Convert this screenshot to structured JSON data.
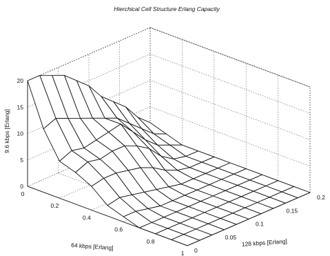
{
  "chart_data": {
    "type": "surface3d",
    "title": "Hierchical Cell Structure Erlang Capacity",
    "xlabel": "64 kbps [Erlang]",
    "ylabel": "128 kbps [Erlang]",
    "zlabel": "9.6 kbps [Erlang]",
    "xlim": [
      0,
      1
    ],
    "ylim": [
      0,
      0.2
    ],
    "zlim": [
      0,
      20
    ],
    "x_ticks": [
      "0",
      "0.2",
      "0.4",
      "0.6",
      "0.8",
      "1"
    ],
    "y_ticks": [
      "0",
      "0.05",
      "0.1",
      "0.15",
      "0.2"
    ],
    "z_ticks": [
      "0",
      "5",
      "10",
      "15",
      "20"
    ],
    "grid": true,
    "x": [
      0,
      0.1,
      0.2,
      0.3,
      0.4,
      0.5,
      0.6,
      0.7,
      0.8,
      0.9,
      1.0
    ],
    "y": [
      0,
      0.02,
      0.04,
      0.06,
      0.08,
      0.1,
      0.12,
      0.14,
      0.16,
      0.18,
      0.2
    ],
    "z": [
      [
        20,
        12,
        7,
        6,
        4.5,
        2,
        1,
        0,
        0,
        0,
        0
      ],
      [
        20,
        13,
        8,
        7,
        5,
        2.5,
        1,
        0,
        0,
        0,
        0
      ],
      [
        19,
        12,
        7.5,
        6.5,
        5,
        2,
        0.5,
        0,
        0,
        0,
        0
      ],
      [
        18,
        11,
        8,
        7,
        4.5,
        1.5,
        0,
        0,
        0,
        0,
        0
      ],
      [
        16,
        10,
        8.5,
        7,
        4,
        1,
        0,
        0,
        0,
        0,
        0
      ],
      [
        14,
        9,
        9,
        6,
        3,
        0.5,
        0,
        0,
        0,
        0,
        0
      ],
      [
        11,
        8,
        6.5,
        4.5,
        1.5,
        0,
        0,
        0,
        0,
        0,
        0
      ],
      [
        9,
        6,
        4,
        2,
        0.5,
        0,
        0,
        0,
        0,
        0,
        0
      ],
      [
        7,
        4,
        2,
        0.5,
        0,
        0,
        0,
        0,
        0,
        0,
        0
      ],
      [
        4,
        2,
        1,
        0,
        0,
        0,
        0,
        0,
        0,
        0,
        0
      ],
      [
        2,
        1,
        0,
        0,
        0,
        0,
        0,
        0,
        0,
        0,
        0
      ]
    ]
  }
}
